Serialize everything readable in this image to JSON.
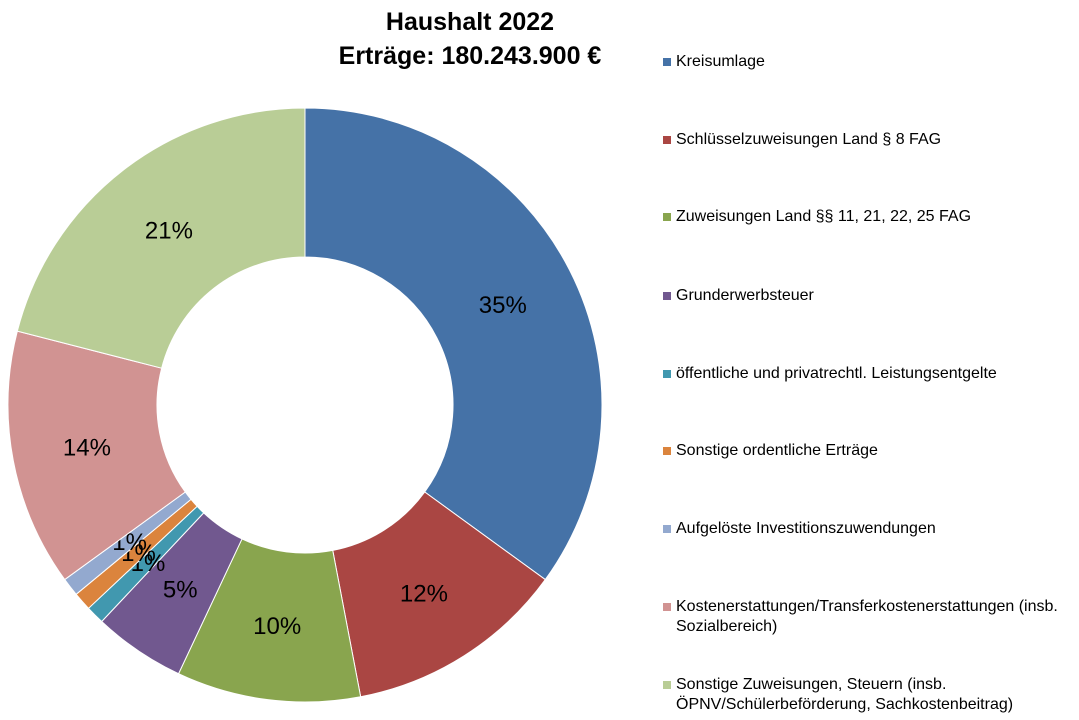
{
  "chart_data": {
    "type": "donut",
    "title": "Haushalt 2022",
    "subtitle": "Erträge: 180.243.900 €",
    "categories": [
      "Kreisumlage",
      "Schlüsselzuweisungen Land § 8 FAG",
      "Zuweisungen Land §§ 11, 21, 22, 25 FAG",
      "Grunderwerbsteuer",
      "öffentliche und privatrechtl. Leistungsentgelte",
      "Sonstige ordentliche Erträge",
      "Aufgelöste Investitionszuwendungen",
      "Kostenerstattungen/Transferkostenerstattungen (insb. Sozialbereich)",
      "Sonstige Zuweisungen, Steuern (insb. ÖPNV/Schülerbeförderung, Sachkostenbeitrag)"
    ],
    "values": [
      35,
      12,
      10,
      5,
      1,
      1,
      1,
      14,
      21
    ],
    "value_labels": [
      "35%",
      "12%",
      "10%",
      "5%",
      "1%",
      "1%",
      "1%",
      "14%",
      "21%"
    ],
    "colors": [
      "#4572a7",
      "#aa4643",
      "#89a54e",
      "#71588f",
      "#4198af",
      "#db843d",
      "#93a9cf",
      "#d19392",
      "#b9cd96"
    ],
    "legend": "right"
  }
}
